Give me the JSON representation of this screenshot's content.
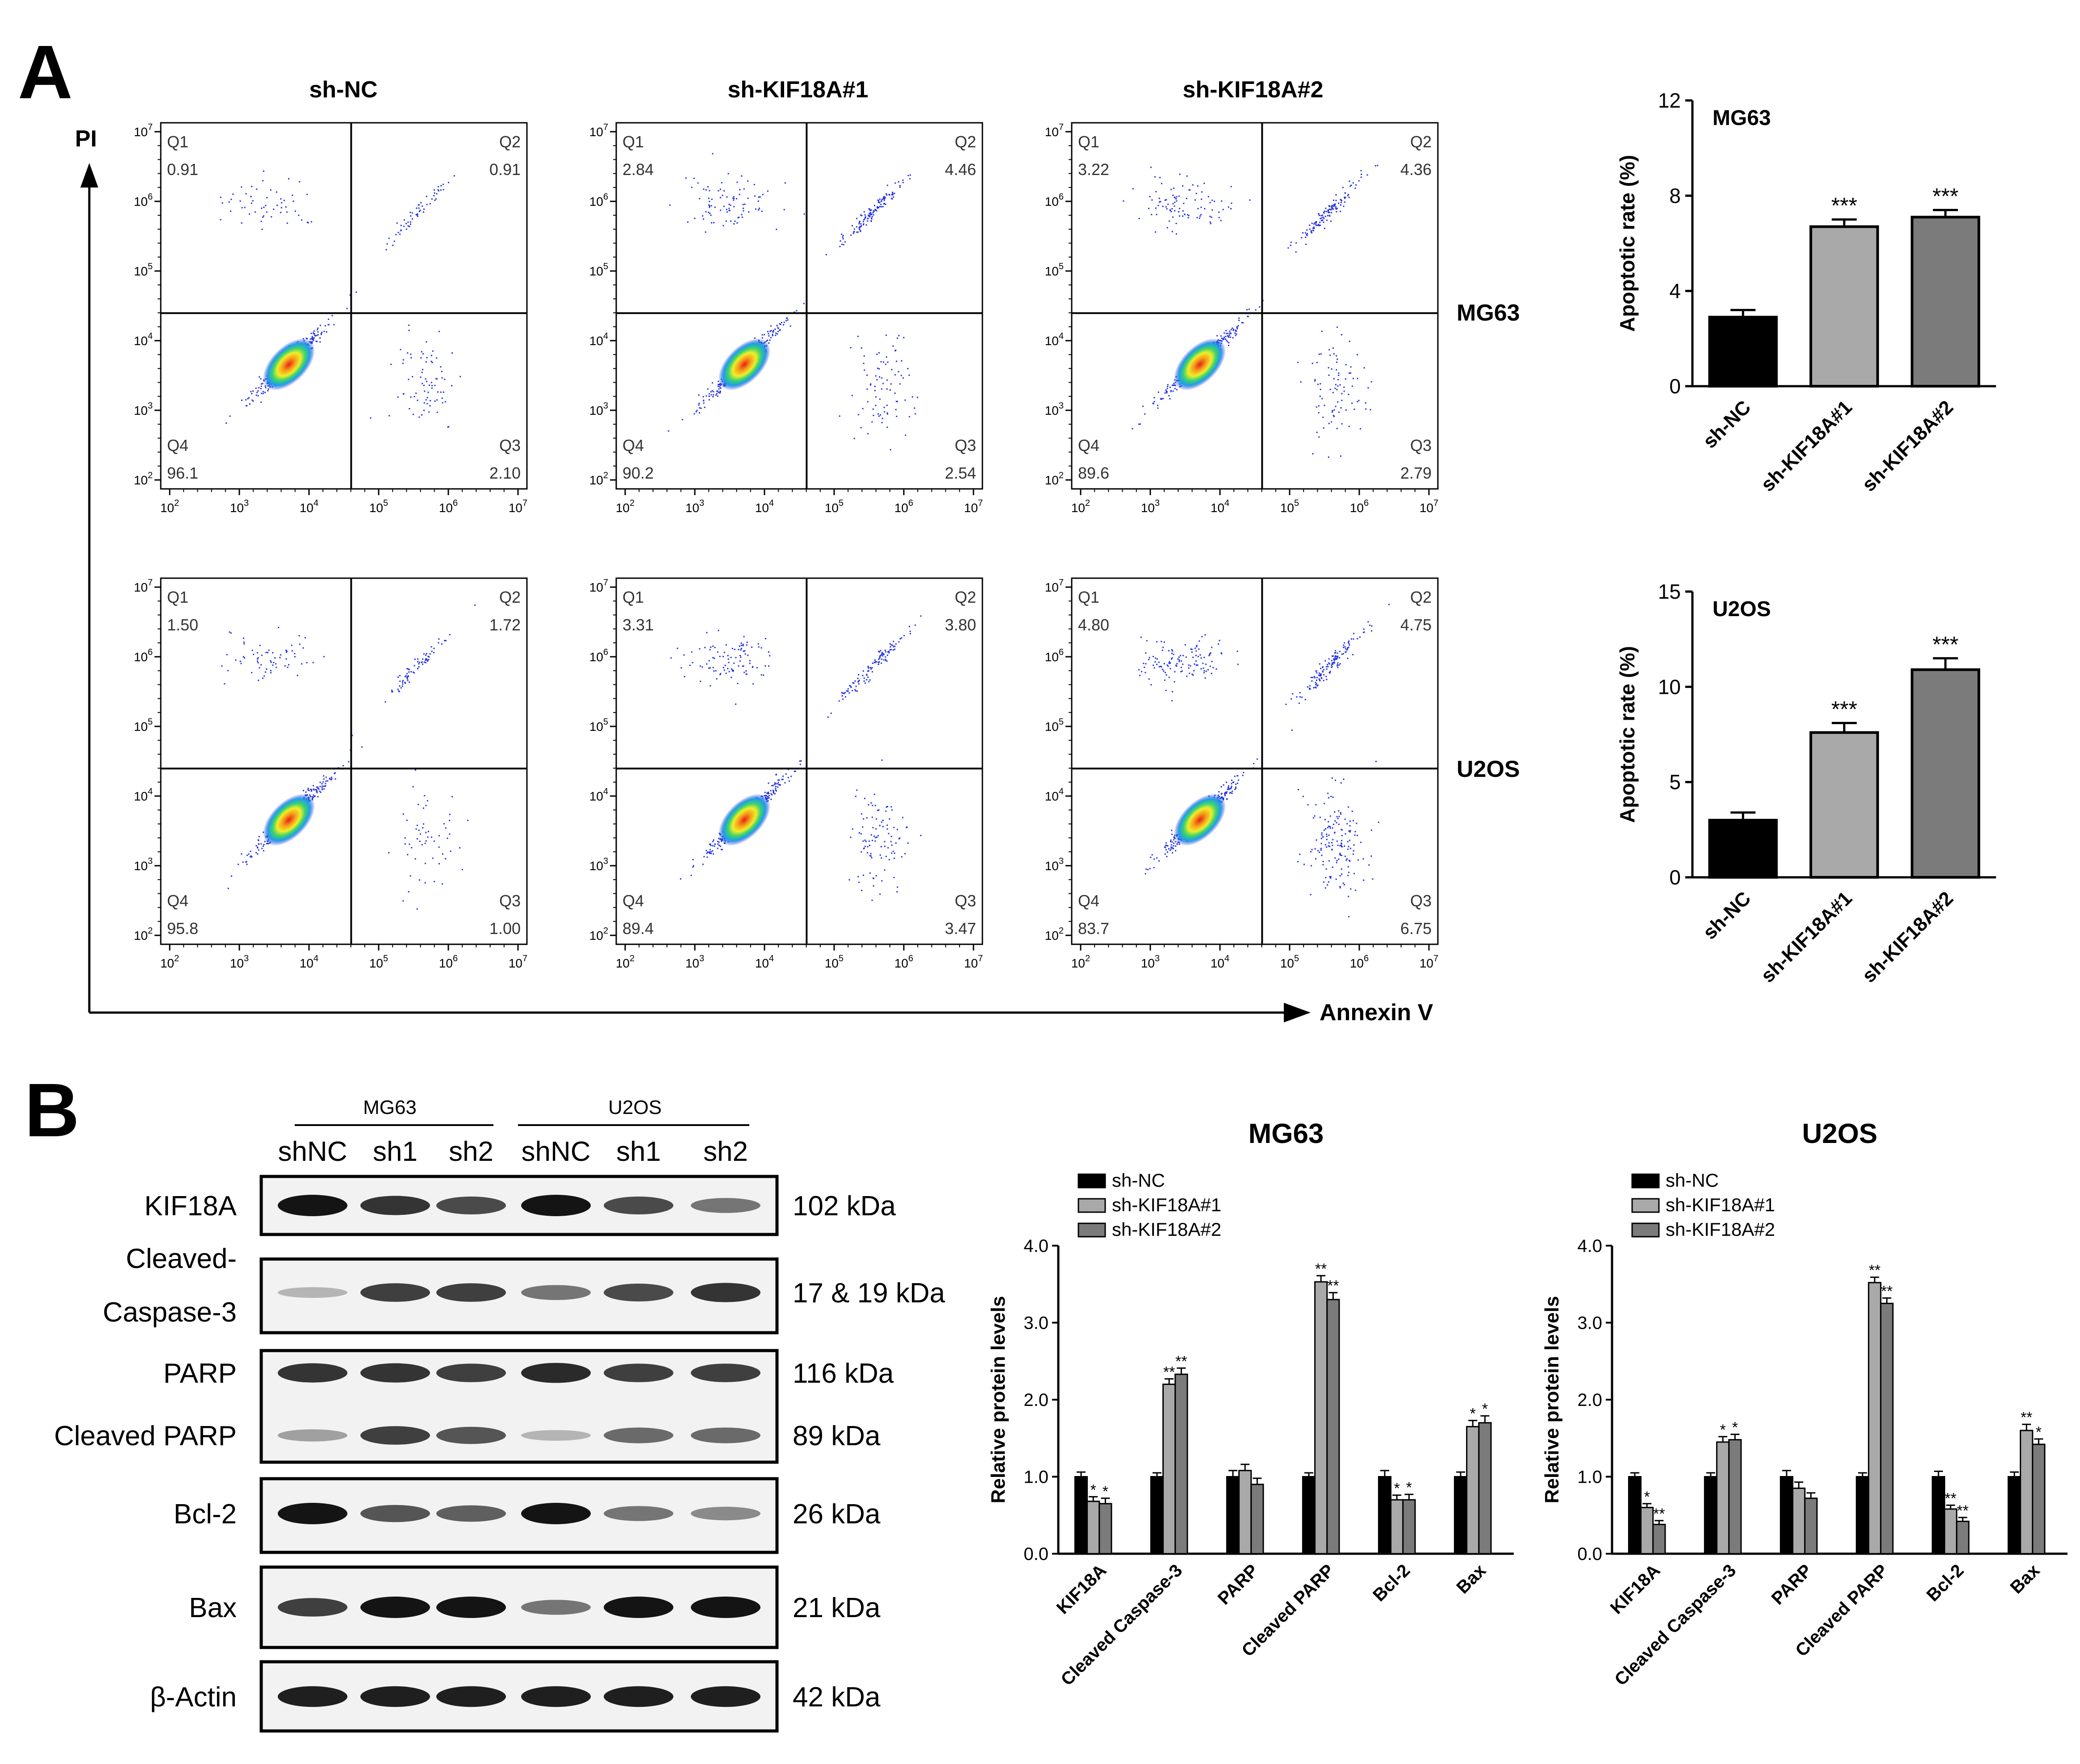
{
  "panel_A": {
    "letter": "A",
    "flow": {
      "column_titles": [
        "sh-NC",
        "sh-KIF18A#1",
        "sh-KIF18A#2"
      ],
      "row_labels": [
        "MG63",
        "U2OS"
      ],
      "y_axis_label": "PI",
      "x_axis_label": "Annexin V",
      "x_ticks": [
        "10^2",
        "10^3",
        "10^4",
        "10^5",
        "10^6",
        "10^7"
      ],
      "y_ticks": [
        "10^2",
        "10^3",
        "10^4",
        "10^5",
        "10^6",
        "10^7"
      ],
      "quadrant_names": [
        "Q1",
        "Q2",
        "Q3",
        "Q4"
      ],
      "plots": [
        {
          "row": "MG63",
          "group": "sh-NC",
          "Q1": "0.91",
          "Q2": "0.91",
          "Q3": "2.10",
          "Q4": "96.1"
        },
        {
          "row": "MG63",
          "group": "sh-KIF18A#1",
          "Q1": "2.84",
          "Q2": "4.46",
          "Q3": "2.54",
          "Q4": "90.2"
        },
        {
          "row": "MG63",
          "group": "sh-KIF18A#2",
          "Q1": "3.22",
          "Q2": "4.36",
          "Q3": "2.79",
          "Q4": "89.6"
        },
        {
          "row": "U2OS",
          "group": "sh-NC",
          "Q1": "1.50",
          "Q2": "1.72",
          "Q3": "1.00",
          "Q4": "95.8"
        },
        {
          "row": "U2OS",
          "group": "sh-KIF18A#1",
          "Q1": "3.31",
          "Q2": "3.80",
          "Q3": "3.47",
          "Q4": "89.4"
        },
        {
          "row": "U2OS",
          "group": "sh-KIF18A#2",
          "Q1": "4.80",
          "Q2": "4.75",
          "Q3": "6.75",
          "Q4": "83.7"
        }
      ]
    }
  },
  "panel_B": {
    "letter": "B",
    "blot": {
      "cell_lines": [
        "MG63",
        "U2OS"
      ],
      "lanes": [
        "shNC",
        "sh1",
        "sh2",
        "shNC",
        "sh1",
        "sh2"
      ],
      "rows": [
        {
          "protein": "KIF18A",
          "mw": "102 kDa"
        },
        {
          "protein": "Cleaved-",
          "protein2": "Caspase-3",
          "mw": "17 & 19 kDa"
        },
        {
          "protein": "PARP",
          "mw": "116 kDa"
        },
        {
          "protein": "Cleaved PARP",
          "mw": "89 kDa"
        },
        {
          "protein": "Bcl-2",
          "mw": "26 kDa"
        },
        {
          "protein": "Bax",
          "mw": "21 kDa"
        },
        {
          "protein": "β-Actin",
          "mw": "42 kDa"
        }
      ]
    }
  },
  "chart_data": [
    {
      "type": "bar",
      "title": "MG63",
      "categories": [
        "sh-NC",
        "sh-KIF18A#1",
        "sh-KIF18A#2"
      ],
      "values": [
        2.9,
        6.7,
        7.1
      ],
      "errors": [
        0.3,
        0.3,
        0.3
      ],
      "significance": [
        "",
        "***",
        "***"
      ],
      "ylabel": "Apoptotic rate (%)",
      "ylim": [
        0,
        12
      ],
      "yticks": [
        "0",
        "4",
        "8",
        "12"
      ],
      "colors": [
        "#000000",
        "#a9a9a9",
        "#7b7b7b"
      ]
    },
    {
      "type": "bar",
      "title": "U2OS",
      "categories": [
        "sh-NC",
        "sh-KIF18A#1",
        "sh-KIF18A#2"
      ],
      "values": [
        3.0,
        7.6,
        10.9
      ],
      "errors": [
        0.4,
        0.5,
        0.6
      ],
      "significance": [
        "",
        "***",
        "***"
      ],
      "ylabel": "Apoptotic rate (%)",
      "ylim": [
        0,
        15
      ],
      "yticks": [
        "0",
        "5",
        "10",
        "15"
      ],
      "colors": [
        "#000000",
        "#a9a9a9",
        "#7b7b7b"
      ]
    },
    {
      "type": "bar",
      "title": "MG63",
      "categories": [
        "KIF18A",
        "Cleaved Caspase-3",
        "PARP",
        "Cleaved PARP",
        "Bcl-2",
        "Bax"
      ],
      "series": [
        {
          "name": "sh-NC",
          "values": [
            1.0,
            1.0,
            1.0,
            1.0,
            1.0,
            1.0
          ],
          "errors": [
            0.06,
            0.05,
            0.08,
            0.05,
            0.08,
            0.06
          ],
          "significance": [
            "",
            "",
            "",
            "",
            "",
            ""
          ]
        },
        {
          "name": "sh-KIF18A#1",
          "values": [
            0.68,
            2.2,
            1.08,
            3.53,
            0.7,
            1.65
          ],
          "errors": [
            0.06,
            0.07,
            0.08,
            0.08,
            0.06,
            0.08
          ],
          "significance": [
            "*",
            "**",
            "",
            "**",
            "*",
            "*"
          ]
        },
        {
          "name": "sh-KIF18A#2",
          "values": [
            0.65,
            2.33,
            0.9,
            3.3,
            0.7,
            1.7
          ],
          "errors": [
            0.07,
            0.08,
            0.08,
            0.09,
            0.07,
            0.09
          ],
          "significance": [
            "*",
            "**",
            "",
            "**",
            "*",
            "*"
          ]
        }
      ],
      "ylabel": "Relative protein levels",
      "ylim": [
        0,
        4
      ],
      "yticks": [
        "0.0",
        "1.0",
        "2.0",
        "3.0",
        "4.0"
      ],
      "colors": [
        "#000000",
        "#a9a9a9",
        "#7b7b7b"
      ],
      "legend": "top-left"
    },
    {
      "type": "bar",
      "title": "U2OS",
      "categories": [
        "KIF18A",
        "Cleaved Caspase-3",
        "PARP",
        "Cleaved PARP",
        "Bcl-2",
        "Bax"
      ],
      "series": [
        {
          "name": "sh-NC",
          "values": [
            1.0,
            1.0,
            1.0,
            1.0,
            1.0,
            1.0
          ],
          "errors": [
            0.05,
            0.05,
            0.08,
            0.05,
            0.07,
            0.06
          ],
          "significance": [
            "",
            "",
            "",
            "",
            "",
            ""
          ]
        },
        {
          "name": "sh-KIF18A#1",
          "values": [
            0.6,
            1.45,
            0.85,
            3.52,
            0.58,
            1.6
          ],
          "errors": [
            0.05,
            0.07,
            0.08,
            0.07,
            0.05,
            0.08
          ],
          "significance": [
            "*",
            "*",
            "",
            "**",
            "**",
            "**"
          ]
        },
        {
          "name": "sh-KIF18A#2",
          "values": [
            0.38,
            1.48,
            0.72,
            3.25,
            0.42,
            1.42
          ],
          "errors": [
            0.05,
            0.07,
            0.07,
            0.07,
            0.05,
            0.07
          ],
          "significance": [
            "**",
            "*",
            "",
            "**",
            "**",
            "*"
          ]
        }
      ],
      "ylabel": "Relative protein levels",
      "ylim": [
        0,
        4
      ],
      "yticks": [
        "0.0",
        "1.0",
        "2.0",
        "3.0",
        "4.0"
      ],
      "colors": [
        "#000000",
        "#a9a9a9",
        "#7b7b7b"
      ],
      "legend": "top-left"
    }
  ]
}
